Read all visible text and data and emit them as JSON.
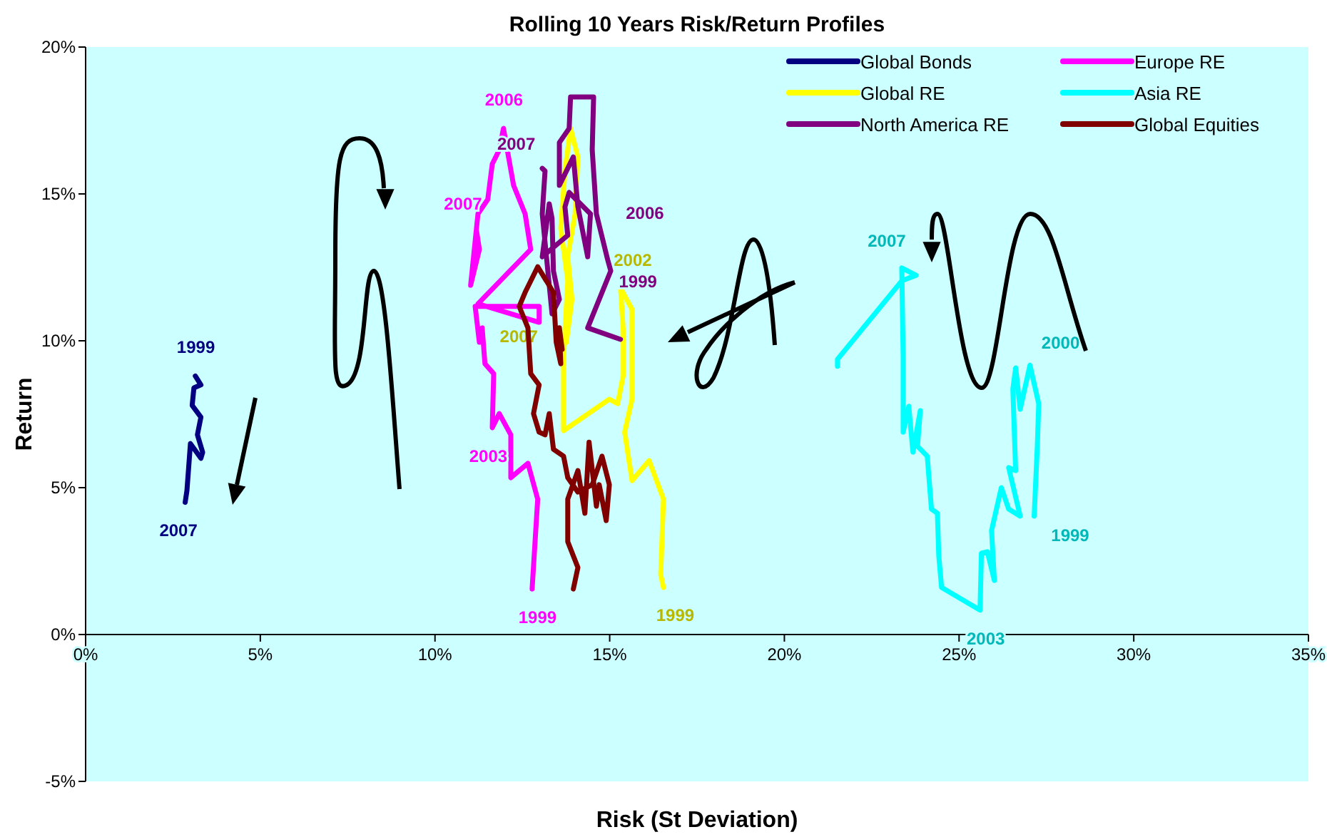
{
  "chart_data": {
    "type": "line",
    "title": "Rolling 10 Years Risk/Return Profiles",
    "xlabel": "Risk (St Deviation)",
    "ylabel": "Return",
    "legend": "top right",
    "grid": false,
    "marker": "none",
    "line_style": "solid",
    "xlim": [
      0,
      35
    ],
    "xticks": [
      {
        "value": 0,
        "label": "0%"
      },
      {
        "value": 5,
        "label": "5%"
      },
      {
        "value": 10,
        "label": "10%"
      },
      {
        "value": 15,
        "label": "15%"
      },
      {
        "value": 20,
        "label": "20%"
      },
      {
        "value": 25,
        "label": "25%"
      },
      {
        "value": 30,
        "label": "30%"
      },
      {
        "value": 35,
        "label": "35%"
      }
    ],
    "ylim": [
      -5,
      20
    ],
    "yticks": [
      {
        "value": -5,
        "label": "-5%"
      },
      {
        "value": 0,
        "label": "0%"
      },
      {
        "value": 5,
        "label": "5%"
      },
      {
        "value": 10,
        "label": "10%"
      },
      {
        "value": 15,
        "label": "15%"
      },
      {
        "value": 20,
        "label": "20%"
      }
    ],
    "annotations": [
      {
        "text": "1999",
        "x": 3.14,
        "y": 8.8
      },
      {
        "text": "2007",
        "x": 2.85,
        "y": 4.5
      },
      {
        "text": "1999",
        "x": 12.78,
        "y": 1.55
      },
      {
        "text": "2003",
        "x": 11.64,
        "y": 7.04
      },
      {
        "text": "2006",
        "x": 11.96,
        "y": 17.23
      },
      {
        "text": "2007",
        "x": 11.19,
        "y": 13.74
      },
      {
        "text": "1999",
        "x": 16.54,
        "y": 1.6
      },
      {
        "text": "2002",
        "x": 15.31,
        "y": 11.8
      },
      {
        "text": "2007",
        "x": 13.76,
        "y": 9.95
      },
      {
        "text": "1999",
        "x": 27.15,
        "y": 4.03
      },
      {
        "text": "2000",
        "x": 27.03,
        "y": 9.17
      },
      {
        "text": "2003",
        "x": 25.6,
        "y": 0.83
      },
      {
        "text": "2007",
        "x": 23.36,
        "y": 12.48
      },
      {
        "text": "1999",
        "x": 14.94,
        "y": 12.77
      },
      {
        "text": "2006",
        "x": 14.62,
        "y": 14.32
      },
      {
        "text": "2007",
        "x": 13.07,
        "y": 15.87
      }
    ],
    "series": [
      {
        "name": "Global Bonds",
        "color": "#000080",
        "x": [
          3.14,
          3.3,
          3.1,
          3.05,
          3.3,
          3.2,
          3.35,
          3.3,
          3.0,
          2.95,
          2.9,
          2.85
        ],
        "values": [
          8.8,
          8.5,
          8.4,
          7.8,
          7.4,
          6.8,
          6.2,
          6.0,
          6.5,
          5.7,
          4.9,
          4.5
        ]
      },
      {
        "name": "Europe RE",
        "color": "#ff00ff",
        "x": [
          12.78,
          12.94,
          12.66,
          12.17,
          12.17,
          11.84,
          11.64,
          11.68,
          11.43,
          11.35,
          11.27,
          11.15,
          12.98,
          12.98,
          11.23,
          12.74,
          12.58,
          12.25,
          11.96,
          11.84,
          11.64,
          11.51,
          11.23,
          11.02,
          11.27,
          11.19
        ],
        "values": [
          1.55,
          4.61,
          5.83,
          5.34,
          6.8,
          7.52,
          7.04,
          8.88,
          9.22,
          10.44,
          9.95,
          11.17,
          11.17,
          10.63,
          11.26,
          13.11,
          14.32,
          15.29,
          17.23,
          16.5,
          16.02,
          14.81,
          14.32,
          11.89,
          13.11,
          13.74
        ]
      },
      {
        "name": "Global RE",
        "color": "#ffff00",
        "x": [
          16.54,
          16.46,
          16.54,
          16.13,
          15.64,
          15.43,
          15.64,
          15.64,
          15.31,
          15.39,
          15.39,
          15.23,
          14.99,
          13.68,
          13.68,
          13.8,
          13.6,
          13.72,
          13.88,
          14.09,
          14.01,
          13.8,
          13.92,
          13.76
        ],
        "values": [
          1.6,
          2.04,
          4.61,
          5.92,
          5.24,
          6.89,
          8.01,
          11.07,
          11.8,
          10.34,
          8.83,
          7.86,
          8.01,
          6.94,
          9.47,
          12.04,
          13.83,
          15.78,
          17.23,
          16.26,
          14.32,
          12.86,
          11.41,
          9.95
        ]
      },
      {
        "name": "Asia RE",
        "color": "#00ffff",
        "x": [
          27.15,
          27.24,
          27.28,
          27.03,
          26.75,
          26.62,
          26.54,
          26.62,
          26.42,
          26.75,
          26.42,
          26.21,
          25.93,
          26.01,
          25.81,
          25.64,
          25.6,
          24.5,
          24.42,
          24.38,
          24.21,
          24.09,
          23.81,
          23.89,
          23.68,
          23.56,
          23.4,
          23.4,
          23.36,
          23.77,
          23.36,
          21.52,
          21.52
        ],
        "values": [
          4.03,
          6.41,
          7.86,
          9.17,
          7.67,
          9.08,
          8.35,
          5.58,
          5.68,
          4.03,
          4.27,
          5.0,
          3.54,
          1.84,
          2.82,
          2.77,
          0.83,
          1.6,
          2.67,
          4.13,
          4.27,
          6.07,
          6.41,
          7.62,
          6.21,
          7.77,
          6.89,
          9.47,
          12.48,
          12.23,
          12.04,
          9.37,
          9.13
        ]
      },
      {
        "name": "North America RE",
        "color": "#800080",
        "x": [
          15.31,
          14.37,
          15.03,
          14.94,
          14.62,
          14.5,
          14.54,
          13.88,
          13.84,
          13.56,
          13.56,
          13.96,
          14.09,
          14.37,
          14.45,
          13.84,
          13.72,
          13.8,
          13.07,
          13.27,
          13.35,
          13.39,
          13.56,
          13.35,
          13.07,
          13.15,
          13.07
        ],
        "values": [
          10.05,
          10.44,
          12.38,
          12.77,
          14.32,
          16.5,
          18.3,
          18.3,
          17.23,
          16.75,
          15.29,
          16.26,
          14.56,
          12.86,
          14.32,
          15.05,
          14.56,
          13.59,
          12.86,
          14.66,
          14.17,
          12.38,
          11.41,
          10.92,
          14.32,
          15.78,
          15.87
        ]
      },
      {
        "name": "Global Equities",
        "color": "#800000",
        "x": [
          13.96,
          14.09,
          13.8,
          13.8,
          14.09,
          14.29,
          14.41,
          14.62,
          14.7,
          14.9,
          14.99,
          14.78,
          14.5,
          14.09,
          13.8,
          13.68,
          13.39,
          13.27,
          13.15,
          12.98,
          12.82,
          12.98,
          12.74,
          12.66,
          12.41,
          12.58,
          12.94,
          13.39,
          13.47,
          13.6,
          13.56,
          13.64
        ],
        "values": [
          1.55,
          2.28,
          3.16,
          4.61,
          5.58,
          4.13,
          6.55,
          4.37,
          5.1,
          3.88,
          5.1,
          6.07,
          5.1,
          4.85,
          5.34,
          6.07,
          6.31,
          7.52,
          6.8,
          6.89,
          7.52,
          8.5,
          8.88,
          10.44,
          11.17,
          11.65,
          12.52,
          11.65,
          9.95,
          9.22,
          10.44,
          9.71
        ]
      }
    ]
  }
}
